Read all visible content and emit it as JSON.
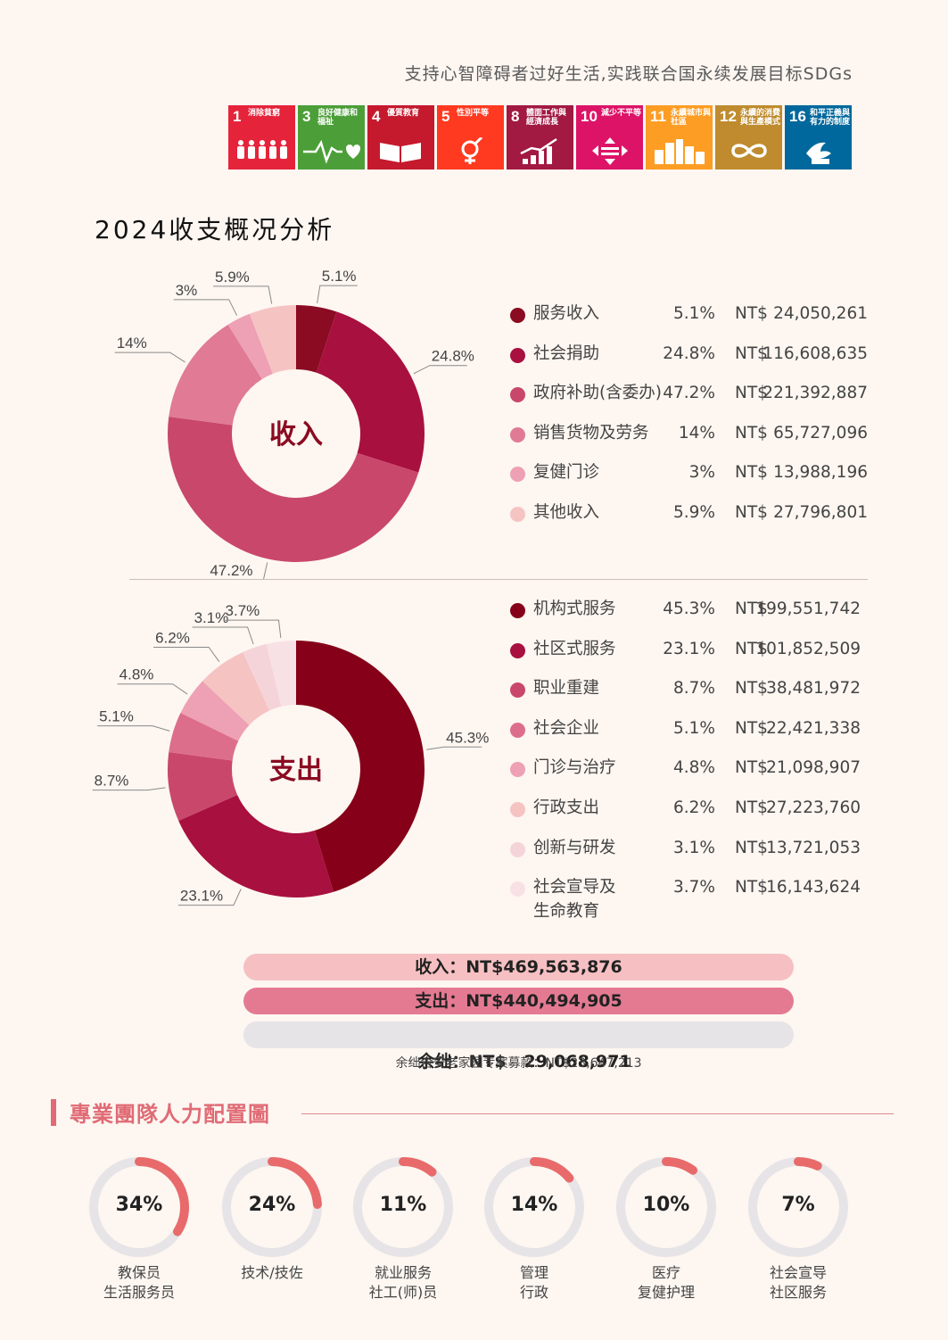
{
  "tagline": "支持心智障碍者过好生活,实践联合国永续发展目标SDGs",
  "sdgs": [
    {
      "num": "1",
      "label": "消除貧窮",
      "color": "#e5243b",
      "icon": "people-icon"
    },
    {
      "num": "3",
      "label": "良好健康和福祉",
      "color": "#4c9f38",
      "icon": "heartbeat-icon"
    },
    {
      "num": "4",
      "label": "優質教育",
      "color": "#c5192d",
      "icon": "book-icon"
    },
    {
      "num": "5",
      "label": "性別平等",
      "color": "#ff3a21",
      "icon": "gender-icon"
    },
    {
      "num": "8",
      "label": "體面工作與經濟成長",
      "color": "#a21942",
      "icon": "growth-chart-icon"
    },
    {
      "num": "10",
      "label": "減少不平等",
      "color": "#dd1367",
      "icon": "equality-arrows-icon"
    },
    {
      "num": "11",
      "label": "永續城市與社區",
      "color": "#fd9d24",
      "icon": "city-icon"
    },
    {
      "num": "12",
      "label": "永續的消費與生產模式",
      "color": "#bf8b2e",
      "icon": "infinity-icon"
    },
    {
      "num": "16",
      "label": "和平正義與有力的制度",
      "color": "#00689d",
      "icon": "dove-icon"
    }
  ],
  "section_title": "2024收支概况分析",
  "currency": "NT$",
  "chart_data": [
    {
      "type": "pie",
      "title": "收入",
      "categories": [
        "服务收入",
        "社会捐助",
        "政府补助(含委办)",
        "销售货物及劳务",
        "复健门诊",
        "其他收入"
      ],
      "values": [
        5.1,
        24.8,
        47.2,
        14,
        3,
        5.9
      ],
      "labels": [
        "5.1%",
        "24.8%",
        "47.2%",
        "14%",
        "3%",
        "5.9%"
      ],
      "amounts": [
        "24,050,261",
        "116,608,635",
        "221,392,887",
        "65,727,096",
        "13,988,196",
        "27,796,801"
      ],
      "colors": [
        "#8a0b22",
        "#a8103f",
        "#c9476b",
        "#e07a95",
        "#eea0b5",
        "#f6c3c3"
      ]
    },
    {
      "type": "pie",
      "title": "支出",
      "categories": [
        "机构式服务",
        "社区式服务",
        "职业重建",
        "社会企业",
        "门诊与治疗",
        "行政支出",
        "创新与研发",
        "社会宣导及生命教育"
      ],
      "legend_lines": [
        [
          "机构式服务"
        ],
        [
          "社区式服务"
        ],
        [
          "职业重建"
        ],
        [
          "社会企业"
        ],
        [
          "门诊与治疗"
        ],
        [
          "行政支出"
        ],
        [
          "创新与研发"
        ],
        [
          "社会宣导及",
          "生命教育"
        ]
      ],
      "values": [
        45.3,
        23.1,
        8.7,
        5.1,
        4.8,
        6.2,
        3.1,
        3.7
      ],
      "labels": [
        "45.3%",
        "23.1%",
        "8.7%",
        "5.1%",
        "4.8%",
        "6.2%",
        "3.1%",
        "3.7%"
      ],
      "amounts": [
        "199,551,742",
        "101,852,509",
        "38,481,972",
        "22,421,338",
        "21,098,907",
        "27,223,760",
        "13,721,053",
        "16,143,624"
      ],
      "colors": [
        "#850018",
        "#a8103f",
        "#c9476b",
        "#dd6e8b",
        "#eea0b5",
        "#f6c3c3",
        "#f5d4d9",
        "#f8e1e4"
      ]
    }
  ],
  "totals": {
    "income_label": "收入：",
    "income_value": "NT$469,563,876",
    "expense_label": "支出：",
    "expense_value": "NT$440,494,905",
    "surplus_label": "余绌：",
    "surplus_value": "NT$   29,068,971",
    "note": "余绌含安老家园专案募款：NT$23,647,213",
    "colors": {
      "income": "#f6c0c2",
      "expense": "#e47a92",
      "surplus": "#e6e4e6"
    }
  },
  "team": {
    "title": "專業團隊人力配置圖",
    "accent": "#e86a6a",
    "track": "#e6e4e6",
    "items": [
      {
        "pct": "34%",
        "value": 34,
        "lines": [
          "教保员",
          "生活服务员"
        ]
      },
      {
        "pct": "24%",
        "value": 24,
        "lines": [
          "技术/技佐"
        ]
      },
      {
        "pct": "11%",
        "value": 11,
        "lines": [
          "就业服务",
          "社工(师)员"
        ]
      },
      {
        "pct": "14%",
        "value": 14,
        "lines": [
          "管理",
          "行政"
        ]
      },
      {
        "pct": "10%",
        "value": 10,
        "lines": [
          "医疗",
          "复健护理"
        ]
      },
      {
        "pct": "7%",
        "value": 7,
        "lines": [
          "社会宣导",
          "社区服务"
        ]
      }
    ]
  }
}
